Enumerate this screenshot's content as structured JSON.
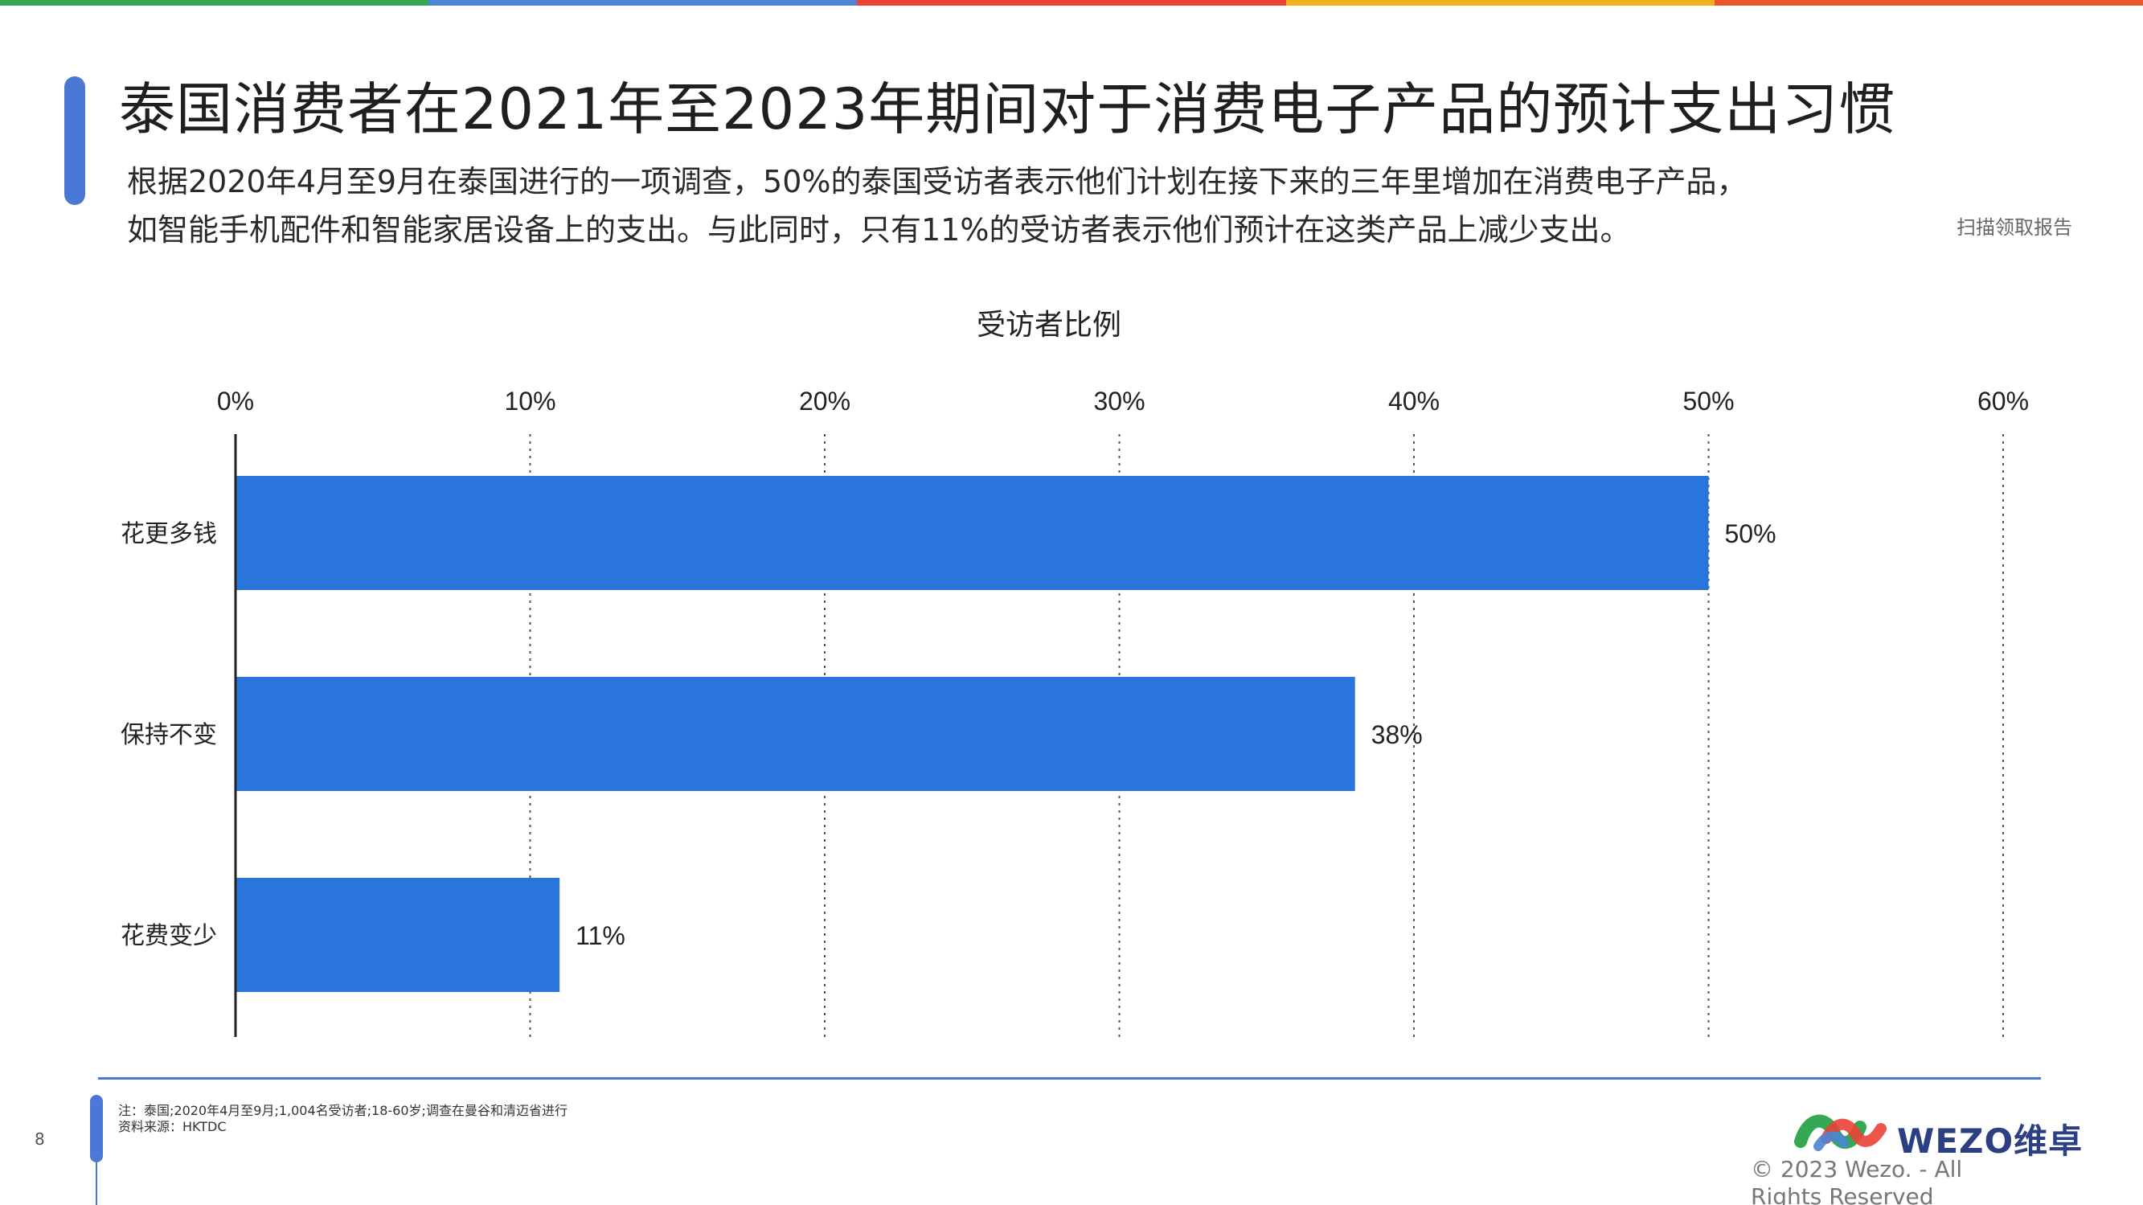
{
  "colors": {
    "accent": "#4a78d4",
    "bar": "#2a75dc",
    "stripe": [
      "#34a853",
      "#4a86d4",
      "#ea4335",
      "#f2b11c",
      "#e8572a"
    ]
  },
  "header": {
    "title": "泰国消费者在2021年至2023年期间对于消费电子产品的预计支出习惯",
    "subtitle_line1": "根据2020年4月至9月在泰国进行的一项调查，50%的泰国受访者表示他们计划在接下来的三年里增加在消费电子产品，",
    "subtitle_line2": "如智能手机配件和智能家居设备上的支出。与此同时，只有11%的受访者表示他们预计在这类产品上减少支出。",
    "scan_link": "扫描领取报告"
  },
  "chart_data": {
    "type": "bar",
    "orientation": "horizontal",
    "title": "受访者比例",
    "categories": [
      "花更多钱",
      "保持不变",
      "花费变少"
    ],
    "values": [
      50,
      38,
      11
    ],
    "value_labels": [
      "50%",
      "38%",
      "11%"
    ],
    "xlim": [
      0,
      60
    ],
    "ticks": [
      0,
      10,
      20,
      30,
      40,
      50,
      60
    ],
    "tick_labels": [
      "0%",
      "10%",
      "20%",
      "30%",
      "40%",
      "50%",
      "60%"
    ],
    "x_axis_position": "top",
    "grid": "vertical dotted",
    "legend": "none"
  },
  "footer": {
    "page_number": "8",
    "note": "注：泰国;2020年4月至9月;1,004名受访者;18-60岁;调查在曼谷和清迈省进行",
    "source": "资料来源：HKTDC",
    "logo_text": "WEZO维卓",
    "copyright": "© 2023 Wezo. - All Rights Reserved"
  }
}
